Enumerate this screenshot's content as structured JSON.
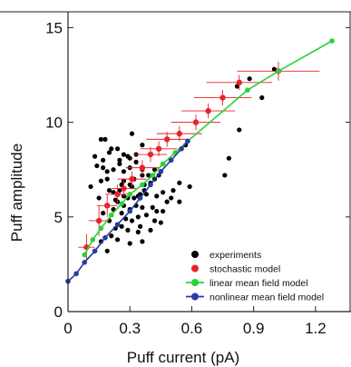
{
  "chart_data": {
    "type": "scatter",
    "xlabel": "Puff current (pA)",
    "ylabel": "Puff amplitude",
    "xlim": [
      0,
      1.35
    ],
    "ylim": [
      0,
      15.5
    ],
    "x_ticks": [
      0,
      0.3,
      0.6,
      0.9,
      1.2
    ],
    "x_tick_labels": [
      "0",
      "0.3",
      "0.6",
      "0.9",
      "1.2"
    ],
    "y_ticks": [
      0,
      5,
      10,
      15
    ],
    "y_tick_labels": [
      "0",
      "5",
      "10",
      "15"
    ],
    "grid": false,
    "legend_position": "bottom-right",
    "series": [
      {
        "name": "experiments",
        "kind": "scatter",
        "color": "#000000",
        "points": [
          [
            0.16,
            9.1
          ],
          [
            0.18,
            9.1
          ],
          [
            0.21,
            8.6
          ],
          [
            0.24,
            8.6
          ],
          [
            0.17,
            8.0
          ],
          [
            0.2,
            8.4
          ],
          [
            0.27,
            8.3
          ],
          [
            0.29,
            8.2
          ],
          [
            0.3,
            8.1
          ],
          [
            0.33,
            8.3
          ],
          [
            0.25,
            7.8
          ],
          [
            0.27,
            7.4
          ],
          [
            0.22,
            7.5
          ],
          [
            0.17,
            7.6
          ],
          [
            0.19,
            7.4
          ],
          [
            0.14,
            7.7
          ],
          [
            0.3,
            7.6
          ],
          [
            0.36,
            7.5
          ],
          [
            0.36,
            7.2
          ],
          [
            0.39,
            7.2
          ],
          [
            0.42,
            7.5
          ],
          [
            0.44,
            7.2
          ],
          [
            0.32,
            7.0
          ],
          [
            0.3,
            6.7
          ],
          [
            0.26,
            6.7
          ],
          [
            0.25,
            6.4
          ],
          [
            0.22,
            6.3
          ],
          [
            0.2,
            6.4
          ],
          [
            0.27,
            6.1
          ],
          [
            0.29,
            6.0
          ],
          [
            0.32,
            6.0
          ],
          [
            0.34,
            6.1
          ],
          [
            0.35,
            6.2
          ],
          [
            0.37,
            6.4
          ],
          [
            0.31,
            6.6
          ],
          [
            0.37,
            6.7
          ],
          [
            0.4,
            6.8
          ],
          [
            0.11,
            6.6
          ],
          [
            0.16,
            6.9
          ],
          [
            0.19,
            7.0
          ],
          [
            0.24,
            5.8
          ],
          [
            0.27,
            5.6
          ],
          [
            0.3,
            5.4
          ],
          [
            0.33,
            5.6
          ],
          [
            0.36,
            5.5
          ],
          [
            0.17,
            5.2
          ],
          [
            0.22,
            5.4
          ],
          [
            0.26,
            5.2
          ],
          [
            0.28,
            4.9
          ],
          [
            0.31,
            4.8
          ],
          [
            0.34,
            5.0
          ],
          [
            0.38,
            5.1
          ],
          [
            0.41,
            5.5
          ],
          [
            0.43,
            5.3
          ],
          [
            0.46,
            5.3
          ],
          [
            0.48,
            5.8
          ],
          [
            0.2,
            4.8
          ],
          [
            0.23,
            4.4
          ],
          [
            0.26,
            4.5
          ],
          [
            0.29,
            4.3
          ],
          [
            0.34,
            4.2
          ],
          [
            0.4,
            4.3
          ],
          [
            0.21,
            4.0
          ],
          [
            0.24,
            3.8
          ],
          [
            0.3,
            3.6
          ],
          [
            0.36,
            3.7
          ],
          [
            0.16,
            3.7
          ],
          [
            0.19,
            3.2
          ],
          [
            0.43,
            6.1
          ],
          [
            0.46,
            6.3
          ],
          [
            0.5,
            6.0
          ],
          [
            0.51,
            6.4
          ],
          [
            0.54,
            6.8
          ],
          [
            0.57,
            8.8
          ],
          [
            0.59,
            6.6
          ],
          [
            0.42,
            4.8
          ],
          [
            0.35,
            4.5
          ],
          [
            0.27,
            6.9
          ],
          [
            0.25,
            8.0
          ],
          [
            0.23,
            5.9
          ],
          [
            0.45,
            4.7
          ],
          [
            0.54,
            5.8
          ],
          [
            0.13,
            8.2
          ],
          [
            0.15,
            6.0
          ],
          [
            0.36,
            8.8
          ],
          [
            0.31,
            9.4
          ],
          [
            0.33,
            7.9
          ],
          [
            0.42,
            7.0
          ],
          [
            0.38,
            6.2
          ],
          [
            0.76,
            7.2
          ],
          [
            0.78,
            8.1
          ],
          [
            0.83,
            9.6
          ],
          [
            0.88,
            12.3
          ],
          [
            0.94,
            11.3
          ],
          [
            1.0,
            12.8
          ],
          [
            0.82,
            11.9
          ]
        ]
      },
      {
        "name": "stochastic model",
        "kind": "errorbar",
        "color": "#e8232a",
        "points": [
          {
            "x": 0.09,
            "y": 3.4,
            "xerr": 0.04,
            "yerr": 0.7
          },
          {
            "x": 0.15,
            "y": 4.8,
            "xerr": 0.05,
            "yerr": 0.8
          },
          {
            "x": 0.19,
            "y": 5.6,
            "xerr": 0.05,
            "yerr": 0.6
          },
          {
            "x": 0.24,
            "y": 6.2,
            "xerr": 0.06,
            "yerr": 0.5
          },
          {
            "x": 0.27,
            "y": 6.5,
            "xerr": 0.06,
            "yerr": 0.4
          },
          {
            "x": 0.31,
            "y": 7.0,
            "xerr": 0.07,
            "yerr": 0.4
          },
          {
            "x": 0.36,
            "y": 7.6,
            "xerr": 0.08,
            "yerr": 0.4
          },
          {
            "x": 0.4,
            "y": 8.3,
            "xerr": 0.08,
            "yerr": 0.4
          },
          {
            "x": 0.44,
            "y": 8.6,
            "xerr": 0.09,
            "yerr": 0.4
          },
          {
            "x": 0.48,
            "y": 9.1,
            "xerr": 0.1,
            "yerr": 0.4
          },
          {
            "x": 0.54,
            "y": 9.4,
            "xerr": 0.11,
            "yerr": 0.4
          },
          {
            "x": 0.62,
            "y": 10.0,
            "xerr": 0.12,
            "yerr": 0.4
          },
          {
            "x": 0.68,
            "y": 10.6,
            "xerr": 0.13,
            "yerr": 0.4
          },
          {
            "x": 0.75,
            "y": 11.3,
            "xerr": 0.14,
            "yerr": 0.4
          },
          {
            "x": 0.83,
            "y": 12.1,
            "xerr": 0.16,
            "yerr": 0.4
          },
          {
            "x": 1.02,
            "y": 12.7,
            "xerr": 0.2,
            "yerr": 0.5
          }
        ]
      },
      {
        "name": "linear mean field model",
        "kind": "line",
        "color": "#2bd13b",
        "points": [
          [
            0.08,
            3.0
          ],
          [
            0.12,
            3.8
          ],
          [
            0.16,
            4.4
          ],
          [
            0.21,
            5.1
          ],
          [
            0.26,
            5.7
          ],
          [
            0.3,
            6.2
          ],
          [
            0.36,
            6.7
          ],
          [
            0.41,
            7.2
          ],
          [
            0.46,
            7.8
          ],
          [
            0.52,
            8.4
          ],
          [
            0.58,
            9.0
          ],
          [
            0.87,
            11.7
          ],
          [
            1.02,
            12.7
          ],
          [
            1.28,
            14.3
          ]
        ]
      },
      {
        "name": "nonlinear mean field model",
        "kind": "line",
        "color": "#2a3aa6",
        "points": [
          [
            0.0,
            1.6
          ],
          [
            0.04,
            2.0
          ],
          [
            0.08,
            2.6
          ],
          [
            0.13,
            3.2
          ],
          [
            0.18,
            3.9
          ],
          [
            0.24,
            4.6
          ],
          [
            0.3,
            5.3
          ],
          [
            0.35,
            6.0
          ],
          [
            0.4,
            6.7
          ],
          [
            0.45,
            7.4
          ],
          [
            0.5,
            8.0
          ],
          [
            0.55,
            8.6
          ],
          [
            0.58,
            9.0
          ]
        ]
      }
    ]
  }
}
